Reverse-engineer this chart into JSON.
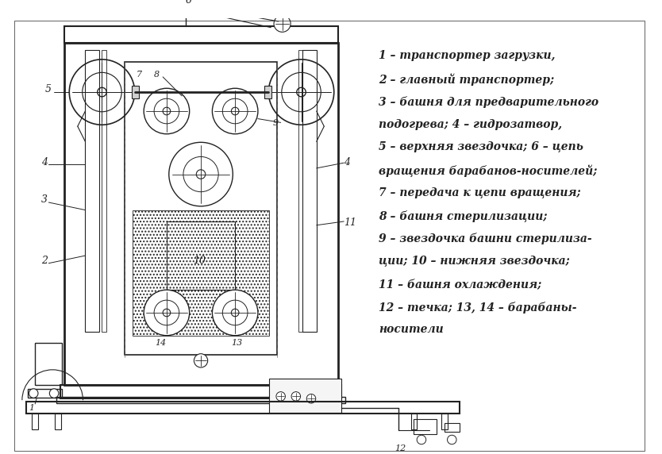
{
  "bg_color": "#ffffff",
  "line_color": "#222222",
  "legend_lines": [
    "1 – транспортер загрузки,",
    "2 – главный транспортер;",
    "3 – башня для предварительного",
    "подогрева; 4 – гидрозатвор,",
    "5 – верхняя звездочка; 6 – цепь",
    "вращения барабанов-носителей;",
    "7 – передача к цепи вращения;",
    "8 – башня стерилизации;",
    "9 – звездочка башни стерилиза-",
    "ции; 10 – нижняя звездочка;",
    "11 – башня охлаждения;",
    "12 – течка; 13, 14 – барабаны-",
    "носители"
  ],
  "fig_width": 8.34,
  "fig_height": 5.72,
  "dpi": 100
}
